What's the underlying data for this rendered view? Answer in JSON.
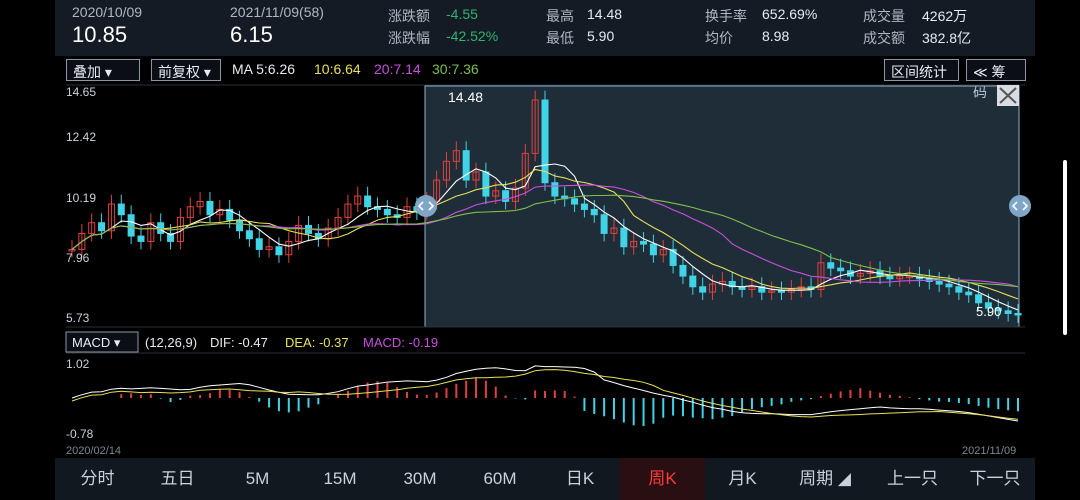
{
  "header": {
    "prev_date": "2020/10/09",
    "prev_price": "10.85",
    "cur_date": "2021/11/09(58)",
    "cur_price": "6.15",
    "chg_amt_label": "涨跌额",
    "chg_amt": "-4.55",
    "chg_pct_label": "涨跌幅",
    "chg_pct": "-42.52%",
    "high_label": "最高",
    "high": "14.48",
    "low_label": "最低",
    "low": "5.90",
    "turnover_label": "换手率",
    "turnover": "652.69%",
    "avg_label": "均价",
    "avg": "8.98",
    "vol_label": "成交量",
    "vol": "4262万",
    "amt_label": "成交额",
    "amt": "382.8亿"
  },
  "controls": {
    "overlay": "叠加 ▾",
    "adjust": "前复权 ▾",
    "stats": "区间统计",
    "chips": "≪ 筹码"
  },
  "ma": {
    "ma5": "MA 5:6.26",
    "ma10": "10:6.64",
    "ma20": "20:7.14",
    "ma30": "30:7.36"
  },
  "price_axis": {
    "t1": "14.65",
    "t2": "12.42",
    "t3": "10.19",
    "t4": "7.96",
    "t5": "5.73"
  },
  "annotations": {
    "high_label": "14.48",
    "low_label": "5.90"
  },
  "macd": {
    "selector": "MACD ▾",
    "params": "(12,26,9)",
    "dif": "DIF: -0.47",
    "dea": "DEA: -0.37",
    "macd": "MACD: -0.19",
    "axis_top": "1.02",
    "axis_bottom": "-0.78"
  },
  "dates": {
    "start": "2020/02/14",
    "end": "2021/11/09"
  },
  "tabs": [
    "分时",
    "五日",
    "5M",
    "15M",
    "30M",
    "60M",
    "日K",
    "周K",
    "月K",
    "周期 ◢",
    "上一只",
    "下一只"
  ],
  "colors": {
    "up": "#e0413f",
    "down": "#41d3e6",
    "ma5": "#ffffff",
    "ma10": "#e8e05a",
    "ma20": "#c94fe0",
    "ma30": "#7fbf4c",
    "selection": "rgba(90,130,160,0.35)"
  }
}
